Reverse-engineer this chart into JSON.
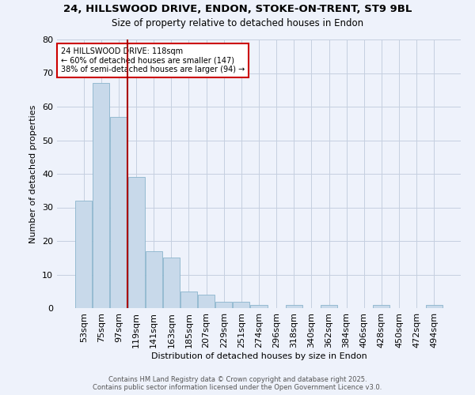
{
  "title": "24, HILLSWOOD DRIVE, ENDON, STOKE-ON-TRENT, ST9 9BL",
  "subtitle": "Size of property relative to detached houses in Endon",
  "xlabel": "Distribution of detached houses by size in Endon",
  "ylabel": "Number of detached properties",
  "bar_color": "#c8d9ea",
  "bar_edge_color": "#8ab4cc",
  "background_color": "#eef2fb",
  "grid_color": "#c5cfe0",
  "bins": [
    "53sqm",
    "75sqm",
    "97sqm",
    "119sqm",
    "141sqm",
    "163sqm",
    "185sqm",
    "207sqm",
    "229sqm",
    "251sqm",
    "274sqm",
    "296sqm",
    "318sqm",
    "340sqm",
    "362sqm",
    "384sqm",
    "406sqm",
    "428sqm",
    "450sqm",
    "472sqm",
    "494sqm"
  ],
  "values": [
    32,
    67,
    57,
    39,
    17,
    15,
    5,
    4,
    2,
    2,
    1,
    0,
    1,
    0,
    1,
    0,
    0,
    1,
    0,
    0,
    1
  ],
  "property_line_color": "#aa0000",
  "annotation_text": "24 HILLSWOOD DRIVE: 118sqm\n← 60% of detached houses are smaller (147)\n38% of semi-detached houses are larger (94) →",
  "annotation_box_color": "#ffffff",
  "annotation_box_edge": "#cc0000",
  "ylim": [
    0,
    80
  ],
  "yticks": [
    0,
    10,
    20,
    30,
    40,
    50,
    60,
    70,
    80
  ],
  "footer_line1": "Contains HM Land Registry data © Crown copyright and database right 2025.",
  "footer_line2": "Contains public sector information licensed under the Open Government Licence v3.0."
}
